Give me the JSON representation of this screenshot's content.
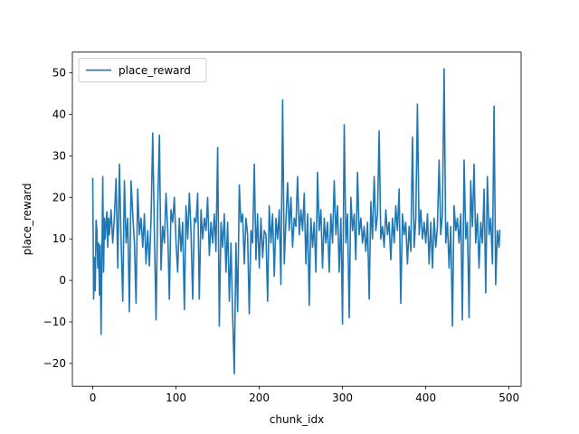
{
  "chart_data": {
    "type": "line",
    "xlabel": "chunk_idx",
    "ylabel": "place_reward",
    "xlim": [
      -24.5,
      514.5
    ],
    "ylim": [
      -25.5,
      55.0
    ],
    "xticks": [
      0,
      100,
      200,
      300,
      400,
      500
    ],
    "yticks": [
      -20,
      -10,
      0,
      10,
      20,
      30,
      40,
      50
    ],
    "legend_position": "top-left",
    "grid": false,
    "series": [
      {
        "name": "place_reward",
        "color": "#1f77b4",
        "points": [
          [
            0,
            24.5
          ],
          [
            1,
            -4.5
          ],
          [
            2,
            5.5
          ],
          [
            3,
            -2.5
          ],
          [
            4,
            14.5
          ],
          [
            5,
            12.0
          ],
          [
            6,
            3.0
          ],
          [
            7,
            9.0
          ],
          [
            8,
            -3.5
          ],
          [
            9,
            8.5
          ],
          [
            10,
            -13.0
          ],
          [
            11,
            6.0
          ],
          [
            12,
            25.0
          ],
          [
            13,
            2.0
          ],
          [
            14,
            15.0
          ],
          [
            15,
            10.0
          ],
          [
            16,
            14.0
          ],
          [
            17,
            16.5
          ],
          [
            18,
            8.0
          ],
          [
            19,
            15.0
          ],
          [
            20,
            11.0
          ],
          [
            22,
            17.0
          ],
          [
            24,
            9.0
          ],
          [
            26,
            15.5
          ],
          [
            28,
            24.5
          ],
          [
            30,
            3.0
          ],
          [
            32,
            28.0
          ],
          [
            34,
            10.0
          ],
          [
            36,
            -5.0
          ],
          [
            38,
            24.0
          ],
          [
            40,
            9.0
          ],
          [
            42,
            15.0
          ],
          [
            44,
            -7.5
          ],
          [
            46,
            24.0
          ],
          [
            48,
            16.0
          ],
          [
            50,
            9.0
          ],
          [
            52,
            -5.5
          ],
          [
            54,
            22.0
          ],
          [
            56,
            11.0
          ],
          [
            58,
            15.0
          ],
          [
            60,
            8.0
          ],
          [
            62,
            16.0
          ],
          [
            64,
            4.0
          ],
          [
            66,
            12.0
          ],
          [
            68,
            3.5
          ],
          [
            70,
            15.0
          ],
          [
            72,
            35.5
          ],
          [
            74,
            12.0
          ],
          [
            76,
            -9.5
          ],
          [
            78,
            18.0
          ],
          [
            80,
            35.0
          ],
          [
            82,
            2.5
          ],
          [
            84,
            13.0
          ],
          [
            86,
            9.0
          ],
          [
            88,
            21.0
          ],
          [
            90,
            12.0
          ],
          [
            92,
            -4.5
          ],
          [
            94,
            17.0
          ],
          [
            96,
            14.0
          ],
          [
            98,
            20.0
          ],
          [
            100,
            9.0
          ],
          [
            102,
            2.0
          ],
          [
            104,
            15.0
          ],
          [
            106,
            7.0
          ],
          [
            108,
            14.0
          ],
          [
            110,
            -7.0
          ],
          [
            112,
            18.0
          ],
          [
            114,
            10.0
          ],
          [
            116,
            21.0
          ],
          [
            118,
            12.0
          ],
          [
            120,
            -4.5
          ],
          [
            122,
            15.0
          ],
          [
            124,
            14.0
          ],
          [
            126,
            21.0
          ],
          [
            128,
            -4.5
          ],
          [
            130,
            17.0
          ],
          [
            132,
            10.0
          ],
          [
            134,
            15.0
          ],
          [
            136,
            12.0
          ],
          [
            138,
            20.0
          ],
          [
            140,
            6.0
          ],
          [
            142,
            14.0
          ],
          [
            144,
            9.0
          ],
          [
            146,
            16.0
          ],
          [
            148,
            7.0
          ],
          [
            150,
            32.0
          ],
          [
            152,
            -11.0
          ],
          [
            154,
            14.0
          ],
          [
            156,
            8.0
          ],
          [
            158,
            16.0
          ],
          [
            160,
            2.0
          ],
          [
            162,
            14.0
          ],
          [
            164,
            -5.0
          ],
          [
            166,
            9.0
          ],
          [
            168,
            -8.0
          ],
          [
            170,
            -22.5
          ],
          [
            172,
            9.0
          ],
          [
            174,
            -7.5
          ],
          [
            176,
            23.0
          ],
          [
            178,
            14.0
          ],
          [
            180,
            16.0
          ],
          [
            182,
            4.0
          ],
          [
            184,
            15.0
          ],
          [
            186,
            11.0
          ],
          [
            188,
            -8.0
          ],
          [
            190,
            12.0
          ],
          [
            192,
            9.0
          ],
          [
            194,
            28.0
          ],
          [
            196,
            5.0
          ],
          [
            198,
            16.0
          ],
          [
            200,
            3.0
          ],
          [
            202,
            15.0
          ],
          [
            204,
            5.5
          ],
          [
            206,
            12.0
          ],
          [
            208,
            11.0
          ],
          [
            210,
            -5.0
          ],
          [
            212,
            18.0
          ],
          [
            214,
            9.0
          ],
          [
            216,
            16.0
          ],
          [
            218,
            1.0
          ],
          [
            220,
            15.0
          ],
          [
            222,
            10.0
          ],
          [
            224,
            17.0
          ],
          [
            226,
            -1.0
          ],
          [
            228,
            43.5
          ],
          [
            230,
            4.0
          ],
          [
            232,
            14.0
          ],
          [
            234,
            23.5
          ],
          [
            236,
            12.0
          ],
          [
            238,
            20.0
          ],
          [
            240,
            8.0
          ],
          [
            242,
            15.0
          ],
          [
            244,
            13.0
          ],
          [
            246,
            25.0
          ],
          [
            248,
            11.0
          ],
          [
            250,
            17.0
          ],
          [
            252,
            12.0
          ],
          [
            254,
            21.0
          ],
          [
            256,
            4.0
          ],
          [
            258,
            16.0
          ],
          [
            260,
            -6.0
          ],
          [
            262,
            15.0
          ],
          [
            264,
            8.0
          ],
          [
            266,
            14.0
          ],
          [
            268,
            2.0
          ],
          [
            270,
            26.0
          ],
          [
            272,
            12.0
          ],
          [
            274,
            17.0
          ],
          [
            276,
            3.0
          ],
          [
            278,
            15.0
          ],
          [
            280,
            9.0
          ],
          [
            282,
            14.0
          ],
          [
            284,
            2.0
          ],
          [
            286,
            16.0
          ],
          [
            288,
            9.0
          ],
          [
            290,
            24.0
          ],
          [
            292,
            11.0
          ],
          [
            294,
            18.0
          ],
          [
            296,
            2.0
          ],
          [
            298,
            15.0
          ],
          [
            300,
            -10.5
          ],
          [
            302,
            37.5
          ],
          [
            304,
            9.0
          ],
          [
            306,
            16.0
          ],
          [
            308,
            -9.0
          ],
          [
            310,
            20.0
          ],
          [
            312,
            12.0
          ],
          [
            314,
            16.0
          ],
          [
            316,
            5.0
          ],
          [
            318,
            26.0
          ],
          [
            320,
            11.0
          ],
          [
            322,
            15.0
          ],
          [
            324,
            9.0
          ],
          [
            326,
            13.0
          ],
          [
            328,
            7.0
          ],
          [
            330,
            14.0
          ],
          [
            332,
            -4.5
          ],
          [
            334,
            19.0
          ],
          [
            336,
            10.0
          ],
          [
            338,
            25.0
          ],
          [
            340,
            12.0
          ],
          [
            342,
            16.0
          ],
          [
            344,
            36.0
          ],
          [
            346,
            10.0
          ],
          [
            348,
            13.0
          ],
          [
            350,
            8.0
          ],
          [
            352,
            17.0
          ],
          [
            354,
            11.0
          ],
          [
            356,
            14.0
          ],
          [
            358,
            5.0
          ],
          [
            360,
            15.0
          ],
          [
            362,
            9.0
          ],
          [
            364,
            18.0
          ],
          [
            366,
            12.0
          ],
          [
            368,
            22.0
          ],
          [
            370,
            -5.5
          ],
          [
            372,
            16.0
          ],
          [
            374,
            11.0
          ],
          [
            376,
            14.0
          ],
          [
            378,
            4.0
          ],
          [
            380,
            13.0
          ],
          [
            382,
            7.0
          ],
          [
            384,
            34.5
          ],
          [
            386,
            8.0
          ],
          [
            388,
            15.0
          ],
          [
            390,
            42.5
          ],
          [
            392,
            11.0
          ],
          [
            394,
            17.0
          ],
          [
            396,
            10.0
          ],
          [
            398,
            14.0
          ],
          [
            400,
            9.0
          ],
          [
            402,
            16.0
          ],
          [
            404,
            4.0
          ],
          [
            406,
            14.0
          ],
          [
            408,
            3.0
          ],
          [
            410,
            15.0
          ],
          [
            412,
            8.0
          ],
          [
            414,
            13.0
          ],
          [
            416,
            29.0
          ],
          [
            418,
            11.0
          ],
          [
            420,
            16.0
          ],
          [
            422,
            51.0
          ],
          [
            424,
            9.0
          ],
          [
            426,
            14.0
          ],
          [
            428,
            3.0
          ],
          [
            430,
            13.0
          ],
          [
            432,
            -11.0
          ],
          [
            434,
            18.0
          ],
          [
            436,
            12.0
          ],
          [
            438,
            15.0
          ],
          [
            440,
            9.0
          ],
          [
            442,
            16.0
          ],
          [
            444,
            -9.5
          ],
          [
            446,
            29.0
          ],
          [
            448,
            10.0
          ],
          [
            450,
            14.0
          ],
          [
            452,
            -9.0
          ],
          [
            454,
            24.0
          ],
          [
            456,
            13.0
          ],
          [
            458,
            28.0
          ],
          [
            460,
            9.0
          ],
          [
            462,
            16.0
          ],
          [
            464,
            3.0
          ],
          [
            466,
            14.0
          ],
          [
            468,
            9.0
          ],
          [
            470,
            22.0
          ],
          [
            472,
            -3.0
          ],
          [
            474,
            25.0
          ],
          [
            476,
            11.0
          ],
          [
            478,
            15.0
          ],
          [
            480,
            4.0
          ],
          [
            482,
            42.0
          ],
          [
            484,
            -1.0
          ],
          [
            486,
            12.0
          ],
          [
            488,
            8.0
          ],
          [
            489,
            12.0
          ]
        ]
      }
    ]
  }
}
